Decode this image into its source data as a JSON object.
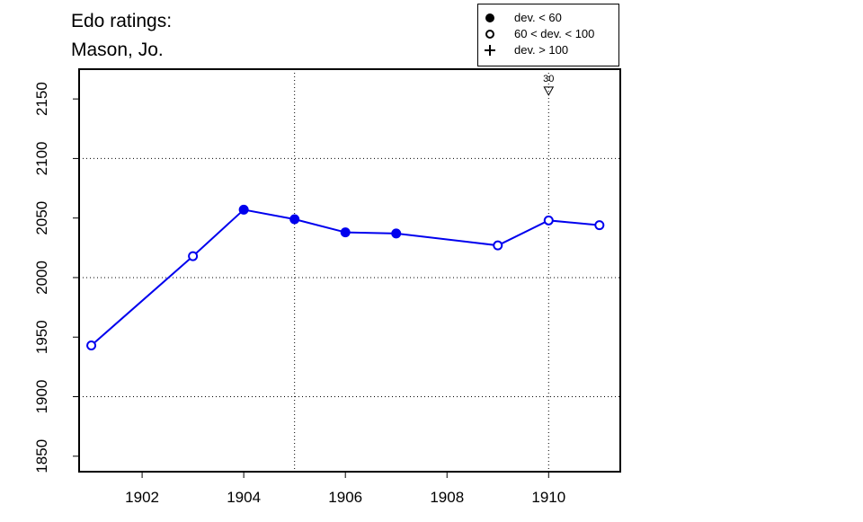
{
  "chart_data": {
    "type": "line",
    "title": [
      "Edo ratings:",
      "Mason, Jo."
    ],
    "x": [
      1901,
      1903,
      1904,
      1905,
      1906,
      1907,
      1909,
      1910,
      1911
    ],
    "series": [
      {
        "color": "#0000ee",
        "values": [
          1943,
          2018,
          2057,
          2049,
          2038,
          2037,
          2027,
          2048,
          2044
        ],
        "markers": [
          "open",
          "open",
          "filled",
          "filled",
          "filled",
          "filled",
          "open",
          "open",
          "open"
        ]
      }
    ],
    "xlim": [
      1900.76,
      1911.41
    ],
    "xticks": [
      1902,
      1904,
      1906,
      1908,
      1910
    ],
    "ylim": [
      1837,
      2175
    ],
    "yticks": [
      1850,
      1900,
      1950,
      2000,
      2050,
      2100,
      2150
    ],
    "hgrid": [
      1900,
      2000,
      2100
    ],
    "vgrid": [
      1905,
      1910
    ],
    "annotations": [
      {
        "x": 1910,
        "y": 2157,
        "label": "30"
      }
    ],
    "legend": {
      "position": "top-right",
      "entries": [
        {
          "marker": "filled",
          "label": "dev. < 60"
        },
        {
          "marker": "open",
          "label": "60 < dev. < 100"
        },
        {
          "marker": "plus",
          "label": "dev. > 100"
        }
      ]
    }
  }
}
